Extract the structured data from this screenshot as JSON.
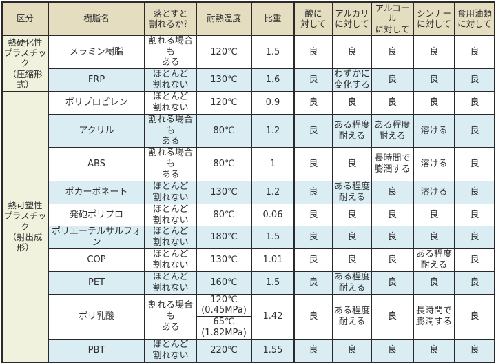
{
  "colors": {
    "header_bg": "#e4ddbf",
    "category_column_bg": "#f0f2dd",
    "row_white": "#ffffff",
    "row_blue": "#d9edf2",
    "grid_border": "#2a2a2a",
    "text": "#2f2f2f"
  },
  "chart_data": {
    "type": "table",
    "columns": [
      "区分",
      "樹脂名",
      "落とすと\n割れるか？",
      "耐熱温度",
      "比重",
      "酸に\n対して",
      "アルカリ\nに対して",
      "アルコール\nに対して",
      "シンナー\nに対して",
      "食用油類\nに対して"
    ],
    "categories": [
      {
        "label": "熱硬化性\nプラスチック\n（圧縮形式）",
        "logical_rows": 2
      },
      {
        "label": "熱可塑性\nプラスチック\n（射出成形）",
        "logical_rows": 10
      }
    ],
    "rows": [
      {
        "category": 0,
        "name": "メラミン樹脂",
        "breaks": "割れる場合も\nある",
        "heat_temp": "120℃",
        "specific_gravity": "1.5",
        "acid": "良",
        "alkali": "良",
        "alcohol": "良",
        "thinner": "良",
        "cooking_oil": "良",
        "shade": "white"
      },
      {
        "category": 0,
        "name": "FRP",
        "breaks": "ほとんど\n割れない",
        "heat_temp": "130℃",
        "specific_gravity": "1.6",
        "acid": "良",
        "alkali": "わずかに\n変化する",
        "alcohol": "良",
        "thinner": "良",
        "cooking_oil": "良",
        "shade": "blue"
      },
      {
        "category": 1,
        "name": "ポリプロピレン",
        "breaks": "ほとんど\n割れない",
        "heat_temp": "120℃",
        "specific_gravity": "0.9",
        "acid": "良",
        "alkali": "良",
        "alcohol": "良",
        "thinner": "良",
        "cooking_oil": "良",
        "shade": "white"
      },
      {
        "category": 1,
        "name": "アクリル",
        "breaks": "割れる場合も\nある",
        "heat_temp": "80℃",
        "specific_gravity": "1.2",
        "acid": "良",
        "alkali": "ある程度\n耐える",
        "alcohol": "ある程度\n耐える",
        "thinner": "溶ける",
        "cooking_oil": "良",
        "shade": "blue"
      },
      {
        "category": 1,
        "name": "ABS",
        "breaks": "割れる場合も\nある",
        "heat_temp": "80℃",
        "specific_gravity": "1",
        "acid": "良",
        "alkali": "良",
        "alcohol": "長時間で\n膨潤する",
        "thinner": "溶ける",
        "cooking_oil": "良",
        "shade": "white"
      },
      {
        "category": 1,
        "name": "ポカーボネート",
        "breaks": "ほとんど\n割れない",
        "heat_temp": "130℃",
        "specific_gravity": "1.2",
        "acid": "良",
        "alkali": "ある程度\n耐える",
        "alcohol": "良",
        "thinner": "溶ける",
        "cooking_oil": "良",
        "shade": "blue"
      },
      {
        "category": 1,
        "name": "発砲ポリプロ",
        "breaks": "ほとんど\n割れない",
        "heat_temp": "80℃",
        "specific_gravity": "0.06",
        "acid": "良",
        "alkali": "良",
        "alcohol": "良",
        "thinner": "良",
        "cooking_oil": "良",
        "shade": "white"
      },
      {
        "category": 1,
        "name": "ポリエーテルサルフォン",
        "breaks": "ほとんど\n割れない",
        "heat_temp": "180℃",
        "specific_gravity": "1.5",
        "acid": "良",
        "alkali": "良",
        "alcohol": "良",
        "thinner": "良",
        "cooking_oil": "良",
        "shade": "blue"
      },
      {
        "category": 1,
        "name": "COP",
        "breaks": "ほとんど\n割れない",
        "heat_temp": "130℃",
        "specific_gravity": "1.01",
        "acid": "良",
        "alkali": "良",
        "alcohol": "良",
        "thinner": "ある程度\n耐える",
        "cooking_oil": "良",
        "shade": "white"
      },
      {
        "category": 1,
        "name": "PET",
        "breaks": "ほとんど\n割れない",
        "heat_temp": "160℃",
        "specific_gravity": "1.5",
        "acid": "良",
        "alkali": "ある程度\n耐える",
        "alcohol": "良",
        "thinner": "良",
        "cooking_oil": "良",
        "shade": "blue"
      },
      {
        "category": 1,
        "name": "ポリ乳酸",
        "breaks": "割れる場合も\nある",
        "heat_temp": "120℃\n(0.45MPa)",
        "heat_temp_2": "65℃\n(1.82MPa)",
        "specific_gravity": "1.42",
        "acid": "良",
        "alkali": "ある程度\n耐える",
        "alcohol": "良",
        "thinner": "長時間で\n膨潤する",
        "cooking_oil": "良",
        "shade": "white"
      },
      {
        "category": 1,
        "name": "PBT",
        "breaks": "ほとんど\n割れない",
        "heat_temp": "220℃",
        "specific_gravity": "1.55",
        "acid": "良",
        "alkali": "良",
        "alcohol": "良",
        "thinner": "良",
        "cooking_oil": "良",
        "shade": "blue"
      }
    ]
  }
}
